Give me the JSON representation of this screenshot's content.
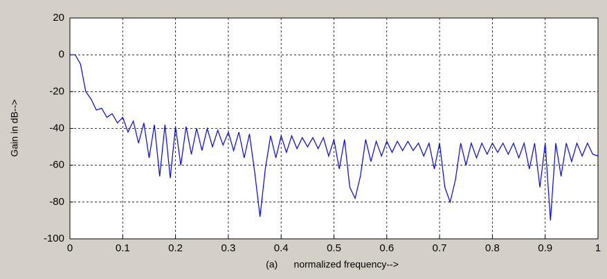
{
  "chart_data": {
    "type": "line",
    "xlabel": "(a)      normalized frequency-->",
    "ylabel": "Gain in dB-->",
    "xlim": [
      0,
      1
    ],
    "ylim": [
      -100,
      20
    ],
    "xticks": [
      0,
      0.1,
      0.2,
      0.3,
      0.4,
      0.5,
      0.6,
      0.7,
      0.8,
      0.9,
      1
    ],
    "yticks": [
      -100,
      -80,
      -60,
      -40,
      -20,
      0,
      20
    ],
    "grid": true,
    "x": [
      0,
      0.01,
      0.02,
      0.03,
      0.04,
      0.05,
      0.06,
      0.07,
      0.08,
      0.09,
      0.1,
      0.11,
      0.12,
      0.13,
      0.14,
      0.15,
      0.16,
      0.17,
      0.18,
      0.19,
      0.2,
      0.21,
      0.22,
      0.23,
      0.24,
      0.25,
      0.26,
      0.27,
      0.28,
      0.29,
      0.3,
      0.31,
      0.32,
      0.33,
      0.34,
      0.35,
      0.36,
      0.37,
      0.38,
      0.39,
      0.4,
      0.41,
      0.42,
      0.43,
      0.44,
      0.45,
      0.46,
      0.47,
      0.48,
      0.49,
      0.5,
      0.51,
      0.52,
      0.53,
      0.54,
      0.55,
      0.56,
      0.57,
      0.58,
      0.59,
      0.6,
      0.61,
      0.62,
      0.63,
      0.64,
      0.65,
      0.66,
      0.67,
      0.68,
      0.69,
      0.7,
      0.71,
      0.72,
      0.73,
      0.74,
      0.75,
      0.76,
      0.77,
      0.78,
      0.79,
      0.8,
      0.81,
      0.82,
      0.83,
      0.84,
      0.85,
      0.86,
      0.87,
      0.88,
      0.89,
      0.9,
      0.91,
      0.92,
      0.93,
      0.94,
      0.95,
      0.96,
      0.97,
      0.98,
      0.99,
      1
    ],
    "series": [
      {
        "color": "#0000ff",
        "values": [
          0,
          0,
          -5,
          -20,
          -24,
          -30,
          -29,
          -34,
          -32,
          -37,
          -34,
          -42,
          -36,
          -48,
          -37,
          -56,
          -38,
          -66,
          -38,
          -67,
          -39,
          -60,
          -39,
          -54,
          -40,
          -52,
          -40,
          -50,
          -41,
          -49,
          -42,
          -52,
          -42,
          -56,
          -43,
          -64,
          -88,
          -62,
          -44,
          -56,
          -44,
          -53,
          -44,
          -51,
          -45,
          -50,
          -45,
          -51,
          -45,
          -55,
          -46,
          -62,
          -46,
          -72,
          -78,
          -66,
          -46,
          -58,
          -47,
          -55,
          -47,
          -53,
          -47,
          -52,
          -47,
          -52,
          -48,
          -55,
          -48,
          -62,
          -48,
          -72,
          -80,
          -68,
          -48,
          -60,
          -48,
          -56,
          -48,
          -54,
          -48,
          -53,
          -48,
          -54,
          -48,
          -56,
          -48,
          -62,
          -48,
          -72,
          -48,
          -90,
          -48,
          -66,
          -48,
          -58,
          -48,
          -55,
          -48,
          -54,
          -55
        ]
      }
    ]
  }
}
